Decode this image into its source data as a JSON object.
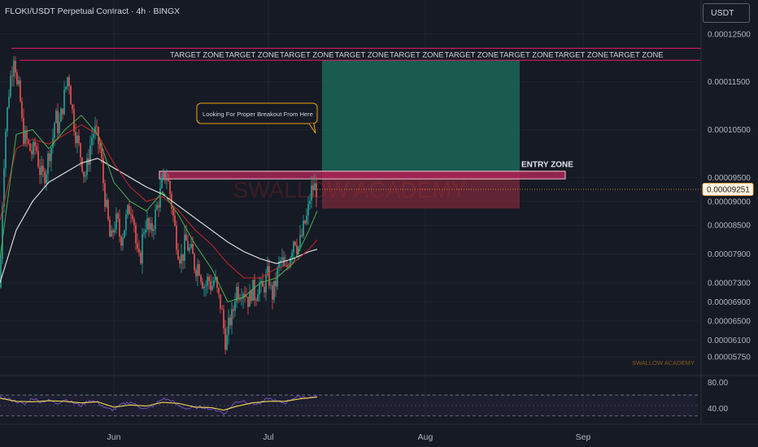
{
  "header": {
    "title": "FLOKI/USDT Perpetual Contract · 4h · BINGX",
    "currency": "USDT"
  },
  "watermark": "SWALLOW ACADEMY",
  "signature": "SWALLOW ACADEMY",
  "annotations": {
    "target_zone_label": "TARGET ZONE",
    "entry_zone_label": "ENTRY ZONE",
    "callout": "Looking For Proper Breakout From Here"
  },
  "colors": {
    "background": "#161a25",
    "bull_candle": "#26a69a",
    "bear_candle": "#ef5350",
    "target_line": "#e91e63",
    "entry_zone": "#b2255a",
    "profit_box": "#1b6b5b",
    "loss_box": "#7a2a3a",
    "price_badge": "#fff3e0",
    "rsi_line": "#7e57c2",
    "rsi_signal": "#f0d64b",
    "callout_border": "#f0a30a"
  },
  "chart_data": {
    "type": "candlestick",
    "symbol": "FLOKI/USDT",
    "timeframe": "4h",
    "y_ticks": [
      "0.00012500",
      "0.00011500",
      "0.00010500",
      "0.00009500",
      "0.00009000",
      "0.00008500",
      "0.00007900",
      "0.00007300",
      "0.00006900",
      "0.00006500",
      "0.00006100",
      "0.00005750"
    ],
    "y_range": [
      5.55e-05,
      0.0001265
    ],
    "x_ticks": [
      "Jun",
      "Jul",
      "Aug",
      "Sep"
    ],
    "current_price": "0.00009251",
    "target_zone_range": [
      0.0001195,
      0.000122
    ],
    "entry_zone_range": [
      9.47e-05,
      9.63e-05
    ],
    "long_position": {
      "entry": 9.63e-05,
      "target": 0.0001195,
      "stop": 8.85e-05
    },
    "price_path": [
      [
        0,
        7.2e-05
      ],
      [
        3,
        9e-05
      ],
      [
        6,
        0.000103
      ],
      [
        9,
        0.000109
      ],
      [
        12,
        0.000115
      ],
      [
        15,
        0.000118
      ],
      [
        18,
        0.0001225
      ],
      [
        20,
        0.000114
      ],
      [
        24,
        0.000113
      ],
      [
        28,
        0.000104
      ],
      [
        32,
        0.000103
      ],
      [
        36,
        0.000101
      ],
      [
        40,
        0.0001
      ],
      [
        44,
        0.000102
      ],
      [
        48,
        9.7e-05
      ],
      [
        52,
        9.5e-05
      ],
      [
        56,
        9.6e-05
      ],
      [
        60,
        0.0001
      ],
      [
        64,
        0.000102
      ],
      [
        68,
        0.000108
      ],
      [
        72,
        0.000105
      ],
      [
        76,
        0.000109
      ],
      [
        80,
        0.000113
      ],
      [
        84,
        0.000117
      ],
      [
        88,
        0.00011
      ],
      [
        92,
        0.000105
      ],
      [
        96,
        0.000102
      ],
      [
        100,
        9.9e-05
      ],
      [
        104,
        9.5e-05
      ],
      [
        108,
        9.8e-05
      ],
      [
        112,
        0.000103
      ],
      [
        116,
        0.000105
      ],
      [
        120,
        0.000103
      ],
      [
        124,
        0.0001
      ],
      [
        128,
        9.2e-05
      ],
      [
        132,
        8.7e-05
      ],
      [
        136,
        8.1e-05
      ],
      [
        140,
        8.5e-05
      ],
      [
        144,
        8.6e-05
      ],
      [
        148,
        8.2e-05
      ],
      [
        152,
        8.4e-05
      ],
      [
        156,
        8.7e-05
      ],
      [
        160,
        8.9e-05
      ],
      [
        164,
        8.8e-05
      ],
      [
        168,
        7.9e-05
      ],
      [
        172,
        7.7e-05
      ],
      [
        176,
        8.4e-05
      ],
      [
        180,
        8.6e-05
      ],
      [
        184,
        8.3e-05
      ],
      [
        188,
        8.5e-05
      ],
      [
        192,
        8.8e-05
      ],
      [
        196,
        9.1e-05
      ],
      [
        200,
        9.4e-05
      ],
      [
        204,
        9.6e-05
      ],
      [
        208,
        9.3e-05
      ],
      [
        212,
        8.8e-05
      ],
      [
        216,
        8.3e-05
      ],
      [
        220,
        7.9e-05
      ],
      [
        224,
        7.8e-05
      ],
      [
        228,
        8.2e-05
      ],
      [
        232,
        8e-05
      ],
      [
        236,
        7.9e-05
      ],
      [
        240,
        7.6e-05
      ],
      [
        244,
        7.7e-05
      ],
      [
        248,
        7.4e-05
      ],
      [
        252,
        7.2e-05
      ],
      [
        256,
        7.4e-05
      ],
      [
        260,
        7.2e-05
      ],
      [
        264,
        7.4e-05
      ],
      [
        268,
        7e-05
      ],
      [
        272,
        6.8e-05
      ],
      [
        276,
        6.2e-05
      ],
      [
        278,
        6e-05
      ],
      [
        282,
        6.5e-05
      ],
      [
        286,
        6.6e-05
      ],
      [
        290,
        7.2e-05
      ],
      [
        294,
        7.1e-05
      ],
      [
        298,
        7.2e-05
      ],
      [
        302,
        7.1e-05
      ],
      [
        306,
        6.9e-05
      ],
      [
        310,
        7.2e-05
      ],
      [
        314,
        7e-05
      ],
      [
        318,
        7.3e-05
      ],
      [
        322,
        7.1e-05
      ],
      [
        326,
        7.3e-05
      ],
      [
        330,
        7.5e-05
      ],
      [
        334,
        7e-05
      ],
      [
        338,
        7.2e-05
      ],
      [
        342,
        7.6e-05
      ],
      [
        346,
        7.8e-05
      ],
      [
        350,
        7.5e-05
      ],
      [
        354,
        7.7e-05
      ],
      [
        358,
        8e-05
      ],
      [
        362,
        8.3e-05
      ],
      [
        366,
        8e-05
      ],
      [
        370,
        8.2e-05
      ],
      [
        374,
        8.5e-05
      ],
      [
        378,
        8.7e-05
      ],
      [
        382,
        9.2e-05
      ],
      [
        386,
        9.3e-05
      ],
      [
        390,
        9.25e-05
      ]
    ],
    "ema_fast": [
      [
        0,
        7.8e-05
      ],
      [
        20,
        0.000104
      ],
      [
        40,
        0.000105
      ],
      [
        60,
        0.000101
      ],
      [
        80,
        0.000105
      ],
      [
        100,
        0.000108
      ],
      [
        120,
        0.000104
      ],
      [
        140,
        9.4e-05
      ],
      [
        160,
        9e-05
      ],
      [
        180,
        8.8e-05
      ],
      [
        200,
        9.2e-05
      ],
      [
        220,
        8.7e-05
      ],
      [
        240,
        8.1e-05
      ],
      [
        260,
        7.6e-05
      ],
      [
        280,
        6.9e-05
      ],
      [
        300,
        7e-05
      ],
      [
        320,
        7.3e-05
      ],
      [
        340,
        7.4e-05
      ],
      [
        360,
        7.7e-05
      ],
      [
        380,
        8.4e-05
      ],
      [
        390,
        8.8e-05
      ]
    ],
    "ema_mid": [
      [
        0,
        8.6e-05
      ],
      [
        20,
        0.000101
      ],
      [
        40,
        0.000103
      ],
      [
        60,
        0.000102
      ],
      [
        80,
        0.000104
      ],
      [
        100,
        0.000106
      ],
      [
        120,
        0.000104
      ],
      [
        140,
        9.8e-05
      ],
      [
        160,
        9.3e-05
      ],
      [
        180,
        9e-05
      ],
      [
        200,
        9.1e-05
      ],
      [
        220,
        8.8e-05
      ],
      [
        240,
        8.4e-05
      ],
      [
        260,
        8.1e-05
      ],
      [
        280,
        7.7e-05
      ],
      [
        300,
        7.4e-05
      ],
      [
        320,
        7.4e-05
      ],
      [
        340,
        7.6e-05
      ],
      [
        360,
        7.7e-05
      ],
      [
        380,
        8e-05
      ],
      [
        390,
        8.2e-05
      ]
    ],
    "ema_slow": [
      [
        0,
        7.3e-05
      ],
      [
        20,
        8.4e-05
      ],
      [
        40,
        9e-05
      ],
      [
        60,
        9.4e-05
      ],
      [
        80,
        9.6e-05
      ],
      [
        100,
        9.8e-05
      ],
      [
        120,
        9.9e-05
      ],
      [
        140,
        9.7e-05
      ],
      [
        160,
        9.5e-05
      ],
      [
        180,
        9.3e-05
      ],
      [
        200,
        9.15e-05
      ],
      [
        220,
        8.9e-05
      ],
      [
        240,
        8.65e-05
      ],
      [
        260,
        8.4e-05
      ],
      [
        280,
        8.15e-05
      ],
      [
        300,
        7.95e-05
      ],
      [
        320,
        7.8e-05
      ],
      [
        340,
        7.7e-05
      ],
      [
        360,
        7.8e-05
      ],
      [
        380,
        7.95e-05
      ],
      [
        390,
        8e-05
      ]
    ],
    "rsi": {
      "levels": [
        "80.00",
        "40.00"
      ],
      "values": [
        [
          0,
          66
        ],
        [
          10,
          62
        ],
        [
          20,
          58
        ],
        [
          30,
          52
        ],
        [
          40,
          64
        ],
        [
          50,
          57
        ],
        [
          60,
          60
        ],
        [
          70,
          54
        ],
        [
          80,
          62
        ],
        [
          90,
          55
        ],
        [
          100,
          50
        ],
        [
          110,
          60
        ],
        [
          120,
          56
        ],
        [
          130,
          44
        ],
        [
          140,
          42
        ],
        [
          150,
          52
        ],
        [
          160,
          57
        ],
        [
          170,
          49
        ],
        [
          180,
          43
        ],
        [
          190,
          51
        ],
        [
          200,
          63
        ],
        [
          210,
          60
        ],
        [
          220,
          49
        ],
        [
          230,
          44
        ],
        [
          240,
          46
        ],
        [
          250,
          47
        ],
        [
          260,
          43
        ],
        [
          270,
          40
        ],
        [
          275,
          33
        ],
        [
          280,
          42
        ],
        [
          290,
          57
        ],
        [
          300,
          59
        ],
        [
          310,
          53
        ],
        [
          320,
          54
        ],
        [
          330,
          64
        ],
        [
          340,
          58
        ],
        [
          350,
          55
        ],
        [
          360,
          64
        ],
        [
          370,
          67
        ],
        [
          380,
          65
        ],
        [
          390,
          69
        ]
      ],
      "signal": [
        [
          0,
          64
        ],
        [
          20,
          58
        ],
        [
          40,
          57
        ],
        [
          60,
          59
        ],
        [
          80,
          58
        ],
        [
          100,
          55
        ],
        [
          120,
          57
        ],
        [
          140,
          47
        ],
        [
          160,
          51
        ],
        [
          180,
          49
        ],
        [
          200,
          56
        ],
        [
          220,
          54
        ],
        [
          240,
          47
        ],
        [
          260,
          46
        ],
        [
          275,
          41
        ],
        [
          290,
          48
        ],
        [
          310,
          55
        ],
        [
          330,
          58
        ],
        [
          350,
          58
        ],
        [
          370,
          63
        ],
        [
          390,
          66
        ]
      ]
    }
  }
}
